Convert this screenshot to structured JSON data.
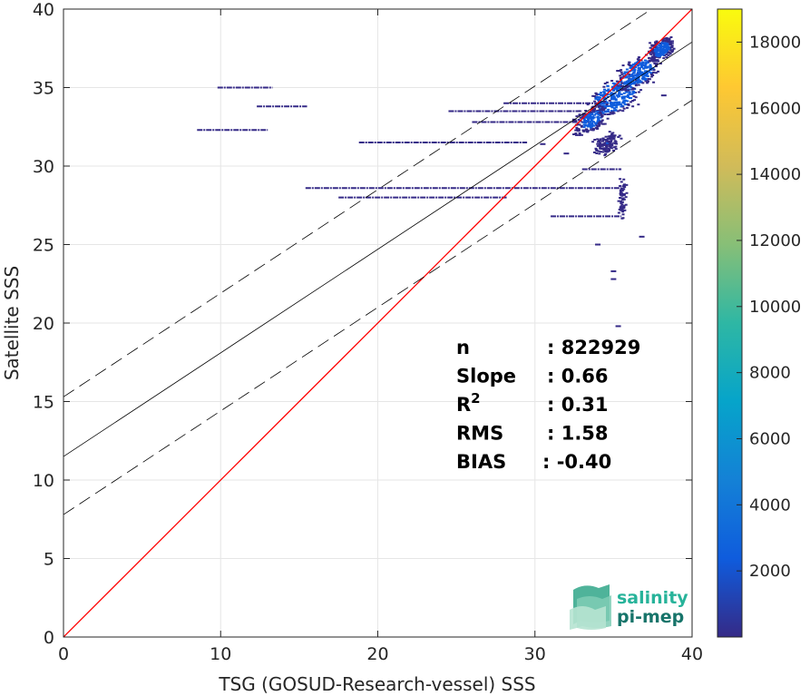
{
  "chart_data": {
    "type": "heatmap",
    "xlabel": "TSG (GOSUD-Research-vessel) SSS",
    "ylabel": "Satellite SSS",
    "xlim": [
      0,
      40
    ],
    "ylim": [
      0,
      40
    ],
    "xticks": [
      0,
      10,
      20,
      30,
      40
    ],
    "yticks": [
      0,
      5,
      10,
      15,
      20,
      25,
      30,
      35,
      40
    ],
    "grid": true,
    "colorbar": {
      "colormap": "parula",
      "range": [
        0,
        19000
      ],
      "ticks": [
        2000,
        4000,
        6000,
        8000,
        10000,
        12000,
        14000,
        16000,
        18000
      ],
      "colors": [
        "#352a87",
        "#0f5cdd",
        "#1481d6",
        "#06a4ca",
        "#2eb7a4",
        "#87bf77",
        "#d1bb59",
        "#fec832",
        "#f9fb0e"
      ]
    },
    "reference_line": {
      "slope": 1,
      "intercept": 0,
      "color": "#ff0000"
    },
    "regression_line": {
      "slope": 0.66,
      "intercept": 11.5,
      "color": "#000000"
    },
    "confidence_lines": {
      "slope": 0.66,
      "intercepts": [
        15.3,
        7.8
      ],
      "style": "dashed"
    },
    "stats": [
      {
        "key": "n",
        "value": ": 822929"
      },
      {
        "key": "Slope",
        "value": ": 0.66"
      },
      {
        "key": "R²",
        "value": ": 0.31"
      },
      {
        "key": "RMS",
        "value": ": 1.58"
      },
      {
        "key": "BIAS",
        "value": ": -0.40"
      }
    ],
    "density_streaks": [
      {
        "y": 35.0,
        "x0": 9.8,
        "x1": 13.3
      },
      {
        "y": 33.8,
        "x0": 12.3,
        "x1": 15.5
      },
      {
        "y": 32.3,
        "x0": 8.5,
        "x1": 13.0
      },
      {
        "y": 31.5,
        "x0": 18.8,
        "x1": 29.5
      },
      {
        "y": 28.6,
        "x0": 15.4,
        "x1": 35.5
      },
      {
        "y": 28.0,
        "x0": 17.5,
        "x1": 28.2
      },
      {
        "y": 33.5,
        "x0": 24.5,
        "x1": 33.0
      },
      {
        "y": 32.8,
        "x0": 26.0,
        "x1": 33.5
      },
      {
        "y": 34.0,
        "x0": 28.0,
        "x1": 34.5
      },
      {
        "y": 26.8,
        "x0": 31.0,
        "x1": 35.5
      },
      {
        "y": 29.8,
        "x0": 33.0,
        "x1": 35.5
      }
    ],
    "density_clusters": [
      {
        "x": 35.0,
        "y": 34.5,
        "w": 3.5,
        "h": 2.5,
        "count": 3000
      },
      {
        "x": 36.5,
        "y": 36.0,
        "w": 3.0,
        "h": 2.2,
        "count": 2500
      },
      {
        "x": 33.5,
        "y": 33.0,
        "w": 2.5,
        "h": 2.0,
        "count": 1800
      },
      {
        "x": 38.0,
        "y": 37.5,
        "w": 1.8,
        "h": 1.5,
        "count": 2000
      },
      {
        "x": 34.5,
        "y": 31.5,
        "w": 2.0,
        "h": 1.5,
        "count": 1200
      },
      {
        "x": 35.5,
        "y": 28.0,
        "w": 0.6,
        "h": 3.0,
        "count": 600
      }
    ],
    "sparse_points": [
      {
        "x": 35.0,
        "y": 23.3
      },
      {
        "x": 35.0,
        "y": 22.8
      },
      {
        "x": 35.3,
        "y": 19.8
      },
      {
        "x": 36.8,
        "y": 25.5
      },
      {
        "x": 34.0,
        "y": 25.0
      },
      {
        "x": 38.2,
        "y": 34.5
      },
      {
        "x": 30.5,
        "y": 31.4
      },
      {
        "x": 32.0,
        "y": 30.8
      }
    ]
  },
  "logo": {
    "line1": "salinity",
    "line2": "pi-mep"
  }
}
